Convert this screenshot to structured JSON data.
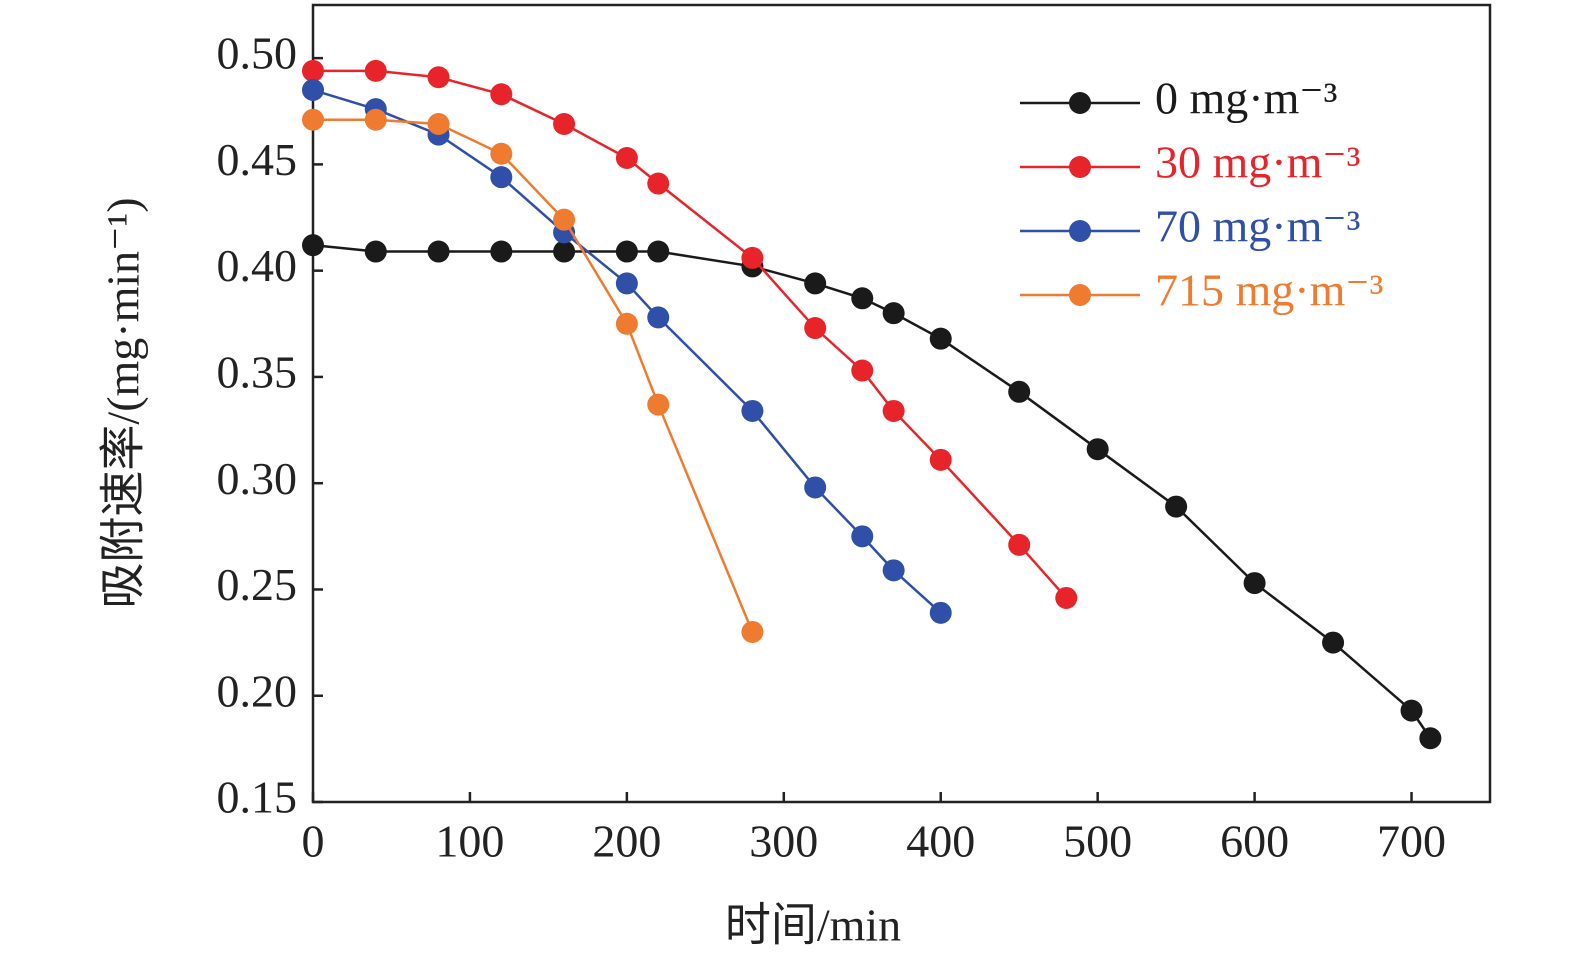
{
  "chart_data": {
    "type": "line",
    "xlabel": "时间/min",
    "ylabel": "吸附速率/(mg·min⁻¹)",
    "xlim": [
      0,
      750
    ],
    "ylim": [
      0.15,
      0.525
    ],
    "xticks": [
      0,
      100,
      200,
      300,
      400,
      500,
      600,
      700
    ],
    "yticks": [
      0.15,
      {
        "value": 0.2,
        "label": "0.20"
      },
      0.25,
      {
        "value": 0.3,
        "label": "0.30"
      },
      0.35,
      {
        "value": 0.4,
        "label": "0.40"
      },
      0.45,
      {
        "value": 0.5,
        "label": "0.50"
      }
    ],
    "legend": "upper right",
    "series": [
      {
        "name": "0 mg·m⁻³",
        "color": "#1a1a1a",
        "x": [
          0,
          40,
          80,
          120,
          160,
          200,
          220,
          280,
          320,
          350,
          370,
          400,
          450,
          500,
          550,
          600,
          650,
          700,
          712
        ],
        "values": [
          0.412,
          0.409,
          0.409,
          0.409,
          0.409,
          0.409,
          0.409,
          0.402,
          0.394,
          0.387,
          0.38,
          0.368,
          0.343,
          0.316,
          0.289,
          0.253,
          0.225,
          0.193,
          0.18
        ]
      },
      {
        "name": "30 mg·m⁻³",
        "color": "#e8242b",
        "x": [
          0,
          40,
          80,
          120,
          160,
          200,
          220,
          280,
          320,
          350,
          370,
          400,
          450,
          480
        ],
        "values": [
          0.494,
          0.494,
          0.491,
          0.483,
          0.469,
          0.453,
          0.441,
          0.406,
          0.373,
          0.353,
          0.334,
          0.311,
          0.271,
          0.246
        ]
      },
      {
        "name": "70 mg·m⁻³",
        "color": "#2f4fa8",
        "x": [
          0,
          40,
          80,
          120,
          160,
          200,
          220,
          280,
          320,
          350,
          370,
          400
        ],
        "values": [
          0.485,
          0.476,
          0.464,
          0.444,
          0.418,
          0.394,
          0.378,
          0.334,
          0.298,
          0.275,
          0.259,
          0.239
        ]
      },
      {
        "name": "715 mg·m⁻³",
        "color": "#ee7b30",
        "x": [
          0,
          40,
          80,
          120,
          160,
          200,
          220,
          280
        ],
        "values": [
          0.471,
          0.471,
          0.469,
          0.455,
          0.424,
          0.375,
          0.337,
          0.23
        ]
      }
    ]
  }
}
